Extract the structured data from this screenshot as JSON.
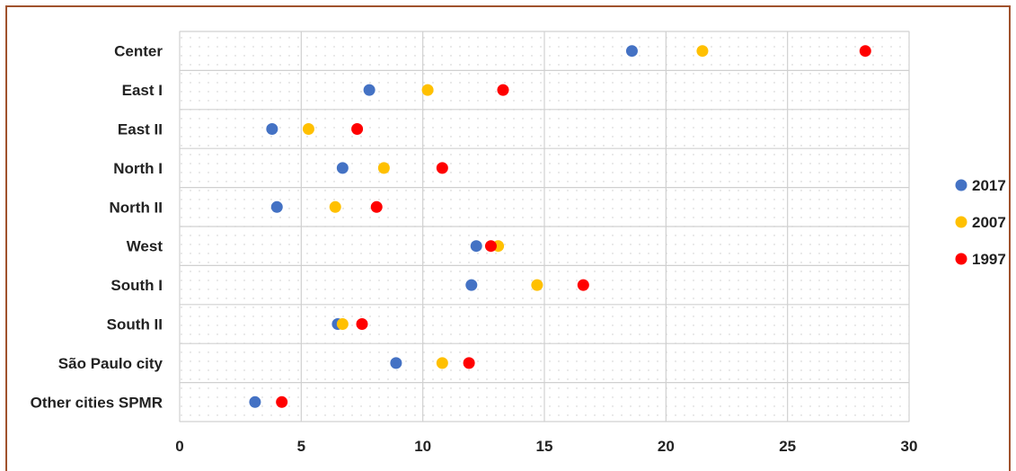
{
  "chart_data": {
    "type": "scatter",
    "title": "",
    "xlabel": "",
    "ylabel": "",
    "categories": [
      "Center",
      "East I",
      "East II",
      "North I",
      "North II",
      "West",
      "South I",
      "South II",
      "São Paulo city",
      "Other cities SPMR"
    ],
    "xlim": [
      0,
      30
    ],
    "xticks": [
      0,
      5,
      10,
      15,
      20,
      25,
      30
    ],
    "grid": true,
    "legend_position": "right",
    "series": [
      {
        "name": "2017",
        "color": "#4472c4",
        "values": [
          18.6,
          7.8,
          3.8,
          6.7,
          4.0,
          12.2,
          12.0,
          6.5,
          8.9,
          3.1
        ]
      },
      {
        "name": "2007",
        "color": "#ffc000",
        "values": [
          21.5,
          10.2,
          5.3,
          8.4,
          6.4,
          13.1,
          14.7,
          6.7,
          10.8,
          null
        ]
      },
      {
        "name": "1997",
        "color": "#ff0000",
        "values": [
          28.2,
          13.3,
          7.3,
          10.8,
          8.1,
          12.8,
          16.6,
          7.5,
          11.9,
          4.2
        ]
      }
    ]
  }
}
